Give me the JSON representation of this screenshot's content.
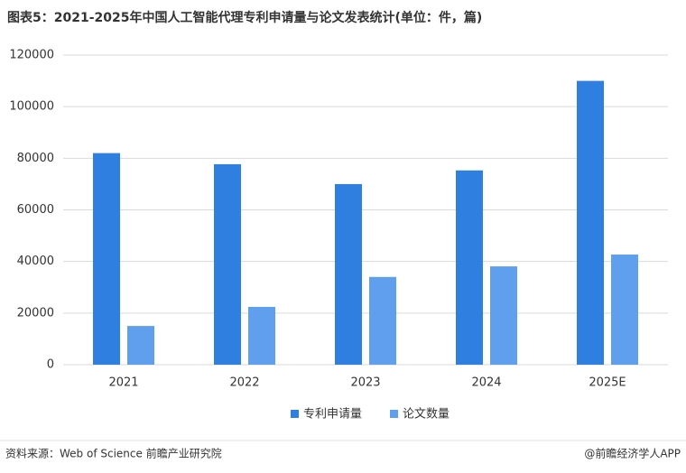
{
  "chart_data": {
    "type": "bar",
    "title": "图表5：2021-2025年中国人工智能代理专利申请量与论文发表统计(单位：件，篇)",
    "categories": [
      "2021",
      "2022",
      "2023",
      "2024",
      "2025E"
    ],
    "series": [
      {
        "name": "专利申请量",
        "color": "#2f7fe0",
        "values": [
          82000,
          77700,
          70000,
          75300,
          110000
        ]
      },
      {
        "name": "论文数量",
        "color": "#5f9fee",
        "values": [
          15000,
          22400,
          34000,
          38100,
          42700
        ]
      }
    ],
    "ylim": [
      0,
      120000
    ],
    "yticks": [
      0,
      20000,
      40000,
      60000,
      80000,
      100000,
      120000
    ],
    "grid": true,
    "legend": "bottom"
  },
  "source": "资料来源：Web of Science 前瞻产业研究院",
  "credit": "@前瞻经济学人APP"
}
